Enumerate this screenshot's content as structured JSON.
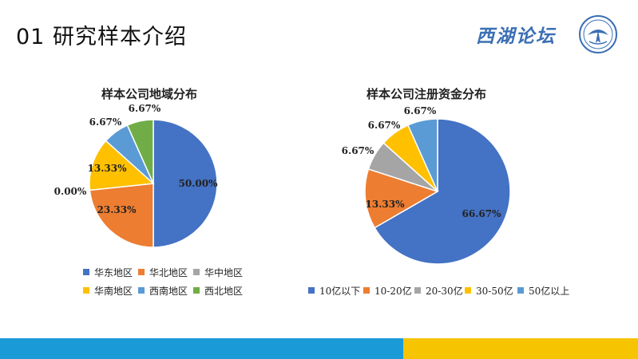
{
  "slide": {
    "title": "01 研究样本介绍"
  },
  "logo": {
    "text": "西湖论坛"
  },
  "colors": {
    "blue": "#4472c4",
    "orange": "#ed7d31",
    "gray": "#a5a5a5",
    "yellow": "#ffc000",
    "light_blue": "#5b9bd5",
    "green": "#70ad47",
    "footer_blue": "#1a9ad6",
    "footer_yellow": "#f6c400"
  },
  "chart_data": [
    {
      "type": "pie",
      "title": "样本公司地域分布",
      "categories": [
        "华东地区",
        "华北地区",
        "华中地区",
        "华南地区",
        "西南地区",
        "西北地区"
      ],
      "values": [
        50.0,
        23.33,
        0.0,
        13.33,
        6.67,
        6.67
      ],
      "labels": [
        "50.00%",
        "23.33%",
        "0.00%",
        "13.33%",
        "6.67%",
        "6.67%"
      ],
      "legend_position": "bottom"
    },
    {
      "type": "pie",
      "title": "样本公司注册资金分布",
      "categories": [
        "10亿以下",
        "10-20亿",
        "20-30亿",
        "30-50亿",
        "50亿以上"
      ],
      "values": [
        66.67,
        13.33,
        6.67,
        6.67,
        6.67
      ],
      "labels": [
        "66.67%",
        "13.33%",
        "6.67%",
        "6.67%",
        "6.67%"
      ],
      "legend_position": "bottom"
    }
  ]
}
